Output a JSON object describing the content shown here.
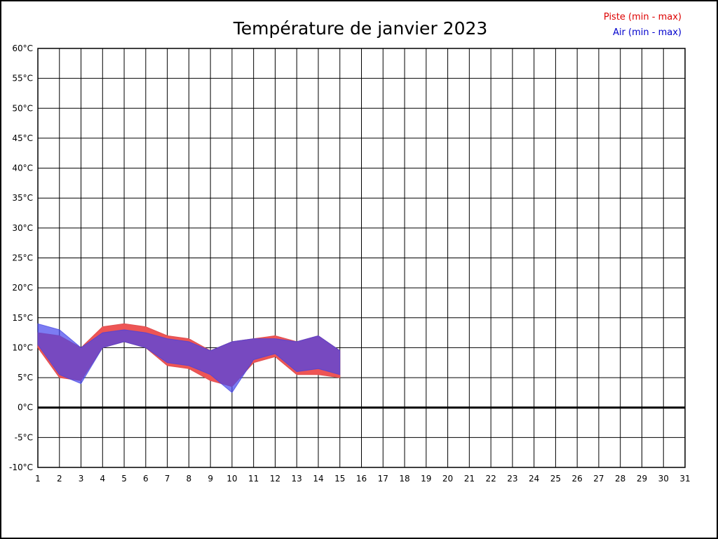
{
  "chart_data": {
    "type": "area",
    "title": "Température de janvier 2023",
    "xlabel": "",
    "ylabel": "",
    "xlim": [
      1,
      31
    ],
    "ylim": [
      -10,
      60
    ],
    "grid": true,
    "legend_position": "top-right",
    "x_ticks": [
      1,
      2,
      3,
      4,
      5,
      6,
      7,
      8,
      9,
      10,
      11,
      12,
      13,
      14,
      15,
      16,
      17,
      18,
      19,
      20,
      21,
      22,
      23,
      24,
      25,
      26,
      27,
      28,
      29,
      30,
      31
    ],
    "y_ticks": [
      60,
      55,
      50,
      45,
      40,
      35,
      30,
      25,
      20,
      15,
      10,
      5,
      0,
      -5,
      -10
    ],
    "y_tick_suffix": "°C",
    "zero_line": true,
    "x": [
      1,
      2,
      3,
      4,
      5,
      6,
      7,
      8,
      9,
      10,
      11,
      12,
      13,
      14,
      15
    ],
    "series": [
      {
        "name": "Piste (min - max)",
        "label_color": "#dd0000",
        "fill": "#ee5555",
        "stroke": "#e05050",
        "min": [
          10,
          5,
          4.5,
          10,
          11,
          10,
          7,
          6.5,
          4.5,
          3.5,
          7.5,
          8.5,
          5.5,
          5.5,
          5
        ],
        "max": [
          12.5,
          12,
          10,
          13.5,
          14,
          13.5,
          12,
          11.5,
          9.5,
          11,
          11.5,
          12,
          11,
          12,
          9.5
        ]
      },
      {
        "name": "Air (min - max)",
        "label_color": "#0000cc",
        "fill": "#4444ee",
        "stroke": "#4040e0",
        "min": [
          10.5,
          5.5,
          4,
          10,
          11,
          10,
          7.5,
          7,
          5.5,
          2.5,
          8,
          9,
          6,
          6.5,
          5.5
        ],
        "max": [
          14,
          13,
          10,
          12.5,
          13,
          12.5,
          11.5,
          11,
          9.5,
          11,
          11.5,
          11.5,
          11,
          12,
          9.5
        ]
      }
    ]
  }
}
